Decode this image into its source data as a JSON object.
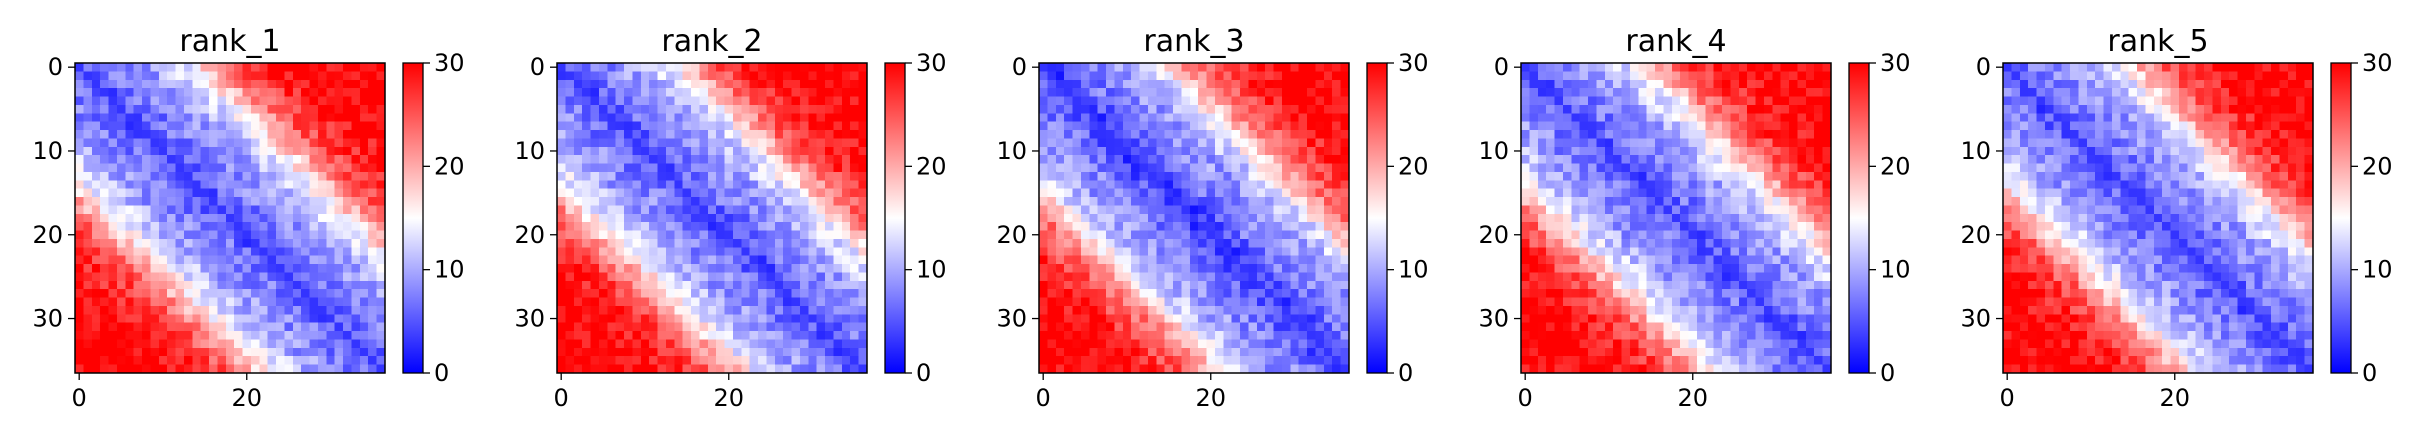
{
  "chart_data": [
    {
      "type": "heatmap",
      "title": "rank_1",
      "matrix_size": 37,
      "profile": [
        3,
        5,
        6,
        7,
        7,
        8,
        8,
        9,
        9,
        10,
        11,
        12,
        13,
        14,
        16,
        18,
        20,
        22,
        24,
        25,
        26,
        27,
        28,
        28,
        29,
        29,
        29,
        30,
        30,
        30,
        30,
        30,
        30,
        30,
        30,
        30,
        30
      ],
      "xticks": [
        0,
        20
      ],
      "yticks": [
        0,
        10,
        20,
        30
      ],
      "colorbar": {
        "min": 0,
        "max": 30,
        "ticks": [
          0,
          10,
          20,
          30
        ]
      },
      "cmap": [
        "#0000ff",
        "#ffffff",
        "#ff0000"
      ]
    },
    {
      "type": "heatmap",
      "title": "rank_2",
      "matrix_size": 37,
      "profile": [
        3,
        5,
        6,
        7,
        7,
        8,
        8,
        9,
        9,
        10,
        11,
        12,
        13,
        14,
        16,
        18,
        20,
        22,
        24,
        25,
        26,
        27,
        28,
        28,
        29,
        29,
        29,
        30,
        30,
        30,
        30,
        30,
        30,
        30,
        30,
        30,
        30
      ],
      "xticks": [
        0,
        20
      ],
      "yticks": [
        0,
        10,
        20,
        30
      ],
      "colorbar": {
        "min": 0,
        "max": 30,
        "ticks": [
          0,
          10,
          20,
          30
        ]
      },
      "cmap": [
        "#0000ff",
        "#ffffff",
        "#ff0000"
      ]
    },
    {
      "type": "heatmap",
      "title": "rank_3",
      "matrix_size": 37,
      "profile": [
        3,
        4,
        5,
        6,
        7,
        7,
        8,
        8,
        9,
        9,
        10,
        11,
        12,
        13,
        15,
        17,
        19,
        21,
        23,
        24,
        25,
        26,
        27,
        28,
        28,
        29,
        29,
        30,
        30,
        30,
        30,
        30,
        30,
        30,
        30,
        30,
        30
      ],
      "xticks": [
        0,
        20
      ],
      "yticks": [
        0,
        10,
        20,
        30
      ],
      "colorbar": {
        "min": 0,
        "max": 30,
        "ticks": [
          0,
          10,
          20,
          30
        ]
      },
      "cmap": [
        "#0000ff",
        "#ffffff",
        "#ff0000"
      ]
    },
    {
      "type": "heatmap",
      "title": "rank_4",
      "matrix_size": 37,
      "profile": [
        3,
        5,
        6,
        7,
        7,
        8,
        8,
        9,
        9,
        10,
        11,
        12,
        13,
        14,
        16,
        18,
        20,
        22,
        24,
        25,
        26,
        27,
        28,
        28,
        29,
        29,
        29,
        30,
        30,
        30,
        30,
        30,
        30,
        30,
        30,
        30,
        30
      ],
      "xticks": [
        0,
        20
      ],
      "yticks": [
        0,
        10,
        20,
        30
      ],
      "colorbar": {
        "min": 0,
        "max": 30,
        "ticks": [
          0,
          10,
          20,
          30
        ]
      },
      "cmap": [
        "#0000ff",
        "#ffffff",
        "#ff0000"
      ]
    },
    {
      "type": "heatmap",
      "title": "rank_5",
      "matrix_size": 37,
      "profile": [
        3,
        5,
        6,
        7,
        7,
        8,
        8,
        9,
        9,
        10,
        11,
        12,
        13,
        14,
        16,
        18,
        20,
        22,
        24,
        25,
        26,
        27,
        28,
        28,
        29,
        29,
        29,
        30,
        30,
        30,
        30,
        30,
        30,
        30,
        30,
        30,
        30
      ],
      "xticks": [
        0,
        20
      ],
      "yticks": [
        0,
        10,
        20,
        30
      ],
      "colorbar": {
        "min": 0,
        "max": 30,
        "ticks": [
          0,
          10,
          20,
          30
        ]
      },
      "cmap": [
        "#0000ff",
        "#ffffff",
        "#ff0000"
      ]
    }
  ]
}
